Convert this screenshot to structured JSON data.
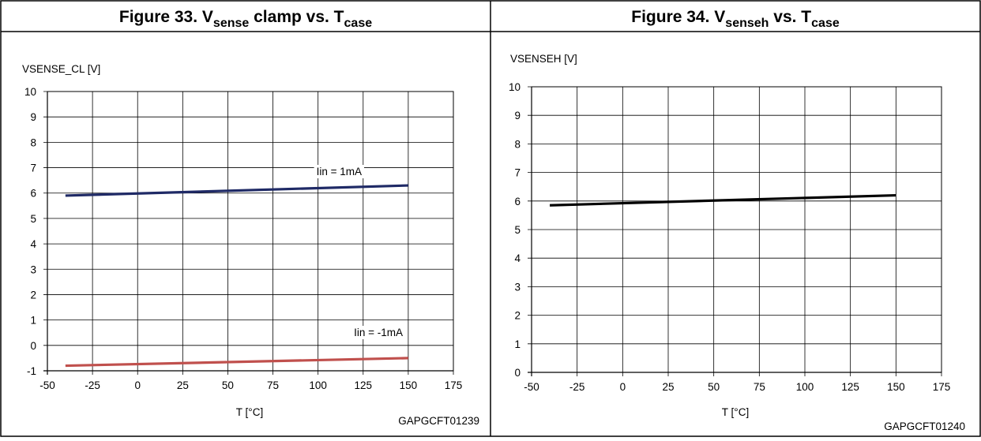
{
  "figures": [
    {
      "title_main": "Figure 33. V",
      "title_sub1": "sense",
      "title_mid": " clamp vs. T",
      "title_sub2": "case",
      "code": "GAPGCFT01239"
    },
    {
      "title_main": "Figure 34. V",
      "title_sub1": "senseh",
      "title_mid": " vs. T",
      "title_sub2": "case",
      "code": "GAPGCFT01240"
    }
  ],
  "chart_data": [
    {
      "type": "line",
      "ylabel": "VSENSE_CL [V]",
      "xlabel": "T [°C]",
      "xlim": [
        -50,
        175
      ],
      "ylim": [
        -1,
        10
      ],
      "xticks": [
        "-50",
        "-25",
        "0",
        "25",
        "50",
        "75",
        "100",
        "125",
        "150",
        "175"
      ],
      "yticks": [
        "-1",
        "0",
        "1",
        "2",
        "3",
        "4",
        "5",
        "6",
        "7",
        "8",
        "9",
        "10"
      ],
      "grid": true,
      "series": [
        {
          "name": "Iin = 1mA",
          "color": "#1f2a66",
          "x": [
            -40,
            150
          ],
          "y": [
            5.9,
            6.3
          ]
        },
        {
          "name": "Iin = -1mA",
          "color": "#c0504d",
          "x": [
            -40,
            150
          ],
          "y": [
            -0.8,
            -0.5
          ]
        }
      ]
    },
    {
      "type": "line",
      "ylabel": "VSENSEH [V]",
      "xlabel": "T [°C]",
      "xlim": [
        -50,
        175
      ],
      "ylim": [
        0,
        10
      ],
      "xticks": [
        "-50",
        "-25",
        "0",
        "25",
        "50",
        "75",
        "100",
        "125",
        "150",
        "175"
      ],
      "yticks": [
        "0",
        "1",
        "2",
        "3",
        "4",
        "5",
        "6",
        "7",
        "8",
        "9",
        "10"
      ],
      "grid": true,
      "series": [
        {
          "color": "#000000",
          "x": [
            -40,
            150
          ],
          "y": [
            5.85,
            6.2
          ]
        }
      ]
    }
  ]
}
